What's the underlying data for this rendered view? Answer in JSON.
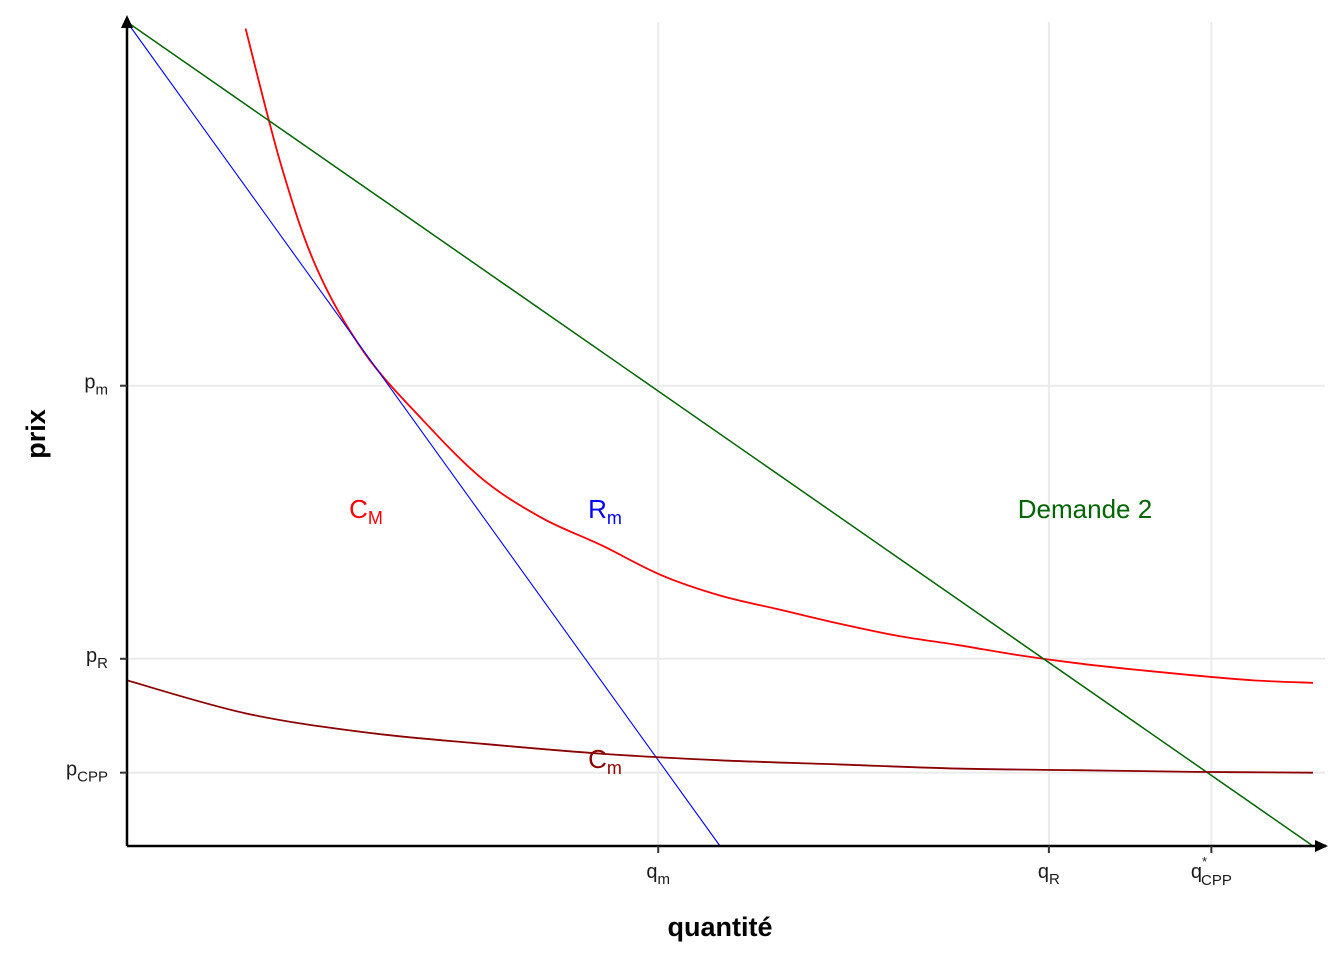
{
  "chart_data": {
    "type": "line",
    "xlabel": "quantité",
    "ylabel": "prix",
    "xlim": [
      0,
      1
    ],
    "ylim": [
      0,
      1
    ],
    "grid": true,
    "x_ticks": [
      {
        "value": 0.4479,
        "base": "q",
        "sub": "m",
        "sup": ""
      },
      {
        "value": 0.7773,
        "base": "q",
        "sub": "R",
        "sup": ""
      },
      {
        "value": 0.9143,
        "base": "q",
        "sub": "CPP",
        "sup": "*"
      }
    ],
    "y_ticks": [
      {
        "value": 0.5586,
        "base": "p",
        "sub": "m"
      },
      {
        "value": 0.2272,
        "base": "p",
        "sub": "R"
      },
      {
        "value": 0.089,
        "base": "p",
        "sub": "CPP"
      }
    ],
    "series": [
      {
        "label_base": "C",
        "label_sub": "M",
        "color": "#ff0000",
        "x": [
          0.1,
          0.13,
          0.16,
          0.2,
          0.25,
          0.3,
          0.35,
          0.4,
          0.45,
          0.5,
          0.55,
          0.6,
          0.65,
          0.7,
          0.75,
          0.8,
          0.85,
          0.9,
          0.95,
          1.0
        ],
        "y": [
          0.992,
          0.826,
          0.701,
          0.599,
          0.516,
          0.445,
          0.398,
          0.365,
          0.329,
          0.304,
          0.287,
          0.27,
          0.255,
          0.244,
          0.232,
          0.222,
          0.214,
          0.207,
          0.201,
          0.198
        ]
      },
      {
        "label_base": "R",
        "label_sub": "m",
        "color": "#0000ff",
        "x": [
          0.0,
          0.5
        ],
        "y": [
          1.0,
          0.0
        ]
      },
      {
        "label_base": "Demande 2",
        "label_sub": "",
        "color": "#006400",
        "x": [
          0.0,
          1.0
        ],
        "y": [
          1.0,
          0.0
        ]
      },
      {
        "label_base": "C",
        "label_sub": "m",
        "color": "#8b0000",
        "x": [
          0.0,
          0.1,
          0.2,
          0.3,
          0.4,
          0.5,
          0.6,
          0.7,
          0.8,
          0.9,
          1.0
        ],
        "y": [
          0.201,
          0.161,
          0.138,
          0.124,
          0.112,
          0.104,
          0.099,
          0.094,
          0.092,
          0.09,
          0.089
        ]
      }
    ]
  }
}
